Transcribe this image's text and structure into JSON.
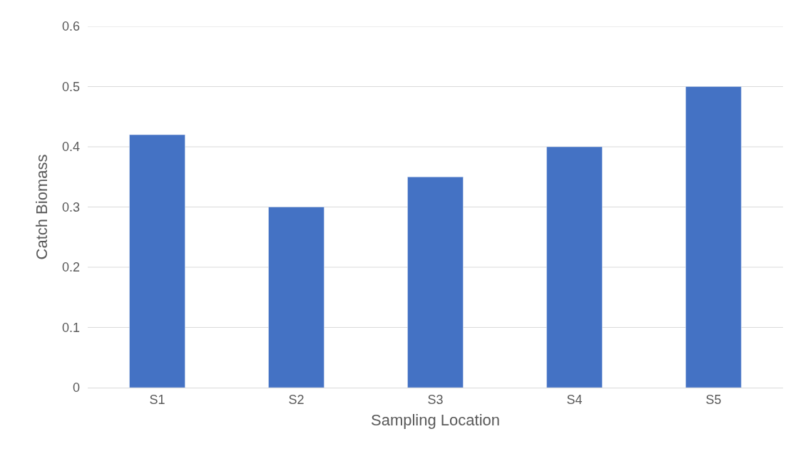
{
  "chart_data": {
    "type": "bar",
    "xlabel": "Sampling Location",
    "ylabel": "Catch Biomass",
    "categories": [
      "S1",
      "S2",
      "S3",
      "S4",
      "S5"
    ],
    "values": [
      0.42,
      0.3,
      0.35,
      0.4,
      0.5
    ],
    "color": "#4472c4",
    "ylim": [
      0,
      0.6
    ],
    "yticks": [
      0,
      0.1,
      0.2,
      0.3,
      0.4,
      0.5,
      0.6
    ],
    "grid": "y"
  }
}
